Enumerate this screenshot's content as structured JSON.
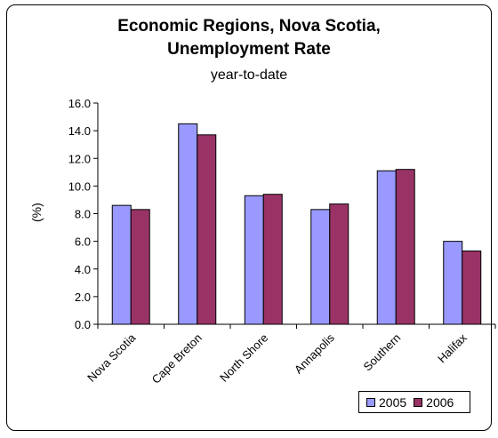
{
  "chart_data": {
    "type": "bar",
    "title": "Economic Regions, Nova Scotia,",
    "title_line2": "Unemployment Rate",
    "subtitle": "year-to-date",
    "ylabel": "(%)",
    "ylim": [
      0,
      16
    ],
    "yticks": [
      "0.0",
      "2.0",
      "4.0",
      "6.0",
      "8.0",
      "10.0",
      "12.0",
      "14.0",
      "16.0"
    ],
    "grid": false,
    "legend_position": "bottom-right",
    "categories": [
      "Nova Scotia",
      "Cape Breton",
      "North Shore",
      "Annapolis",
      "Southern",
      "Halifax"
    ],
    "series": [
      {
        "name": "2005",
        "color": "#9999ff",
        "values": [
          8.6,
          14.5,
          9.3,
          8.3,
          11.1,
          6.0
        ]
      },
      {
        "name": "2006",
        "color": "#993366",
        "values": [
          8.3,
          13.7,
          9.4,
          8.7,
          11.2,
          5.3
        ]
      }
    ]
  }
}
